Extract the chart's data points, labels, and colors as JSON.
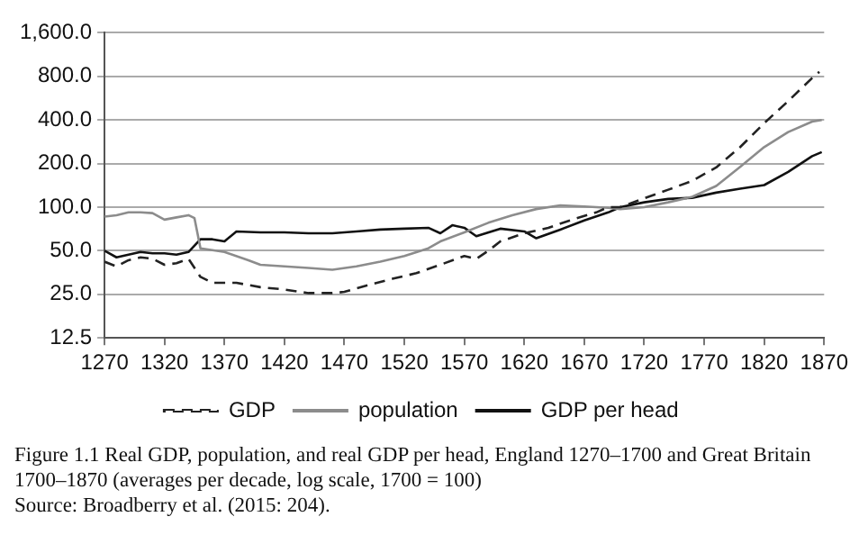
{
  "chart_data": {
    "type": "line",
    "log": "y",
    "grid": "y",
    "legend": "bottom",
    "marker": "none",
    "xlim": [
      1270,
      1870
    ],
    "xticks": [
      1270,
      1320,
      1370,
      1420,
      1470,
      1520,
      1570,
      1620,
      1670,
      1720,
      1770,
      1820,
      1870
    ],
    "ylim": [
      12.5,
      1600
    ],
    "yticks": [
      {
        "value": 12.5,
        "label": "12.5"
      },
      {
        "value": 25,
        "label": "25.0"
      },
      {
        "value": 50,
        "label": "50.0"
      },
      {
        "value": 100,
        "label": "100.0"
      },
      {
        "value": 200,
        "label": "200.0"
      },
      {
        "value": 400,
        "label": "400.0"
      },
      {
        "value": 800,
        "label": "800.0"
      },
      {
        "value": 1600,
        "label": "1,600.0"
      }
    ],
    "series": [
      {
        "name": "GDP",
        "color": "#222222",
        "line_style": "dashed",
        "x": [
          1270,
          1280,
          1290,
          1300,
          1310,
          1320,
          1330,
          1340,
          1350,
          1360,
          1380,
          1400,
          1420,
          1440,
          1460,
          1470,
          1490,
          1510,
          1530,
          1550,
          1570,
          1580,
          1590,
          1600,
          1620,
          1640,
          1660,
          1680,
          1690,
          1700,
          1720,
          1740,
          1760,
          1780,
          1800,
          1820,
          1840,
          1860,
          1866
        ],
        "values": [
          42,
          39,
          43,
          45,
          44,
          40,
          41,
          44,
          33,
          30,
          30,
          28,
          27,
          25.5,
          25.5,
          26,
          29,
          32,
          35,
          40,
          46,
          44,
          50,
          58,
          66,
          72,
          82,
          92,
          100,
          100,
          115,
          132,
          152,
          188,
          260,
          380,
          540,
          780,
          860
        ]
      },
      {
        "name": "population",
        "color": "#8c8c8c",
        "line_style": "solid",
        "x": [
          1270,
          1280,
          1290,
          1300,
          1310,
          1320,
          1330,
          1340,
          1345,
          1350,
          1370,
          1390,
          1400,
          1420,
          1440,
          1460,
          1480,
          1500,
          1520,
          1540,
          1550,
          1570,
          1590,
          1610,
          1630,
          1650,
          1670,
          1690,
          1700,
          1720,
          1740,
          1760,
          1780,
          1800,
          1820,
          1840,
          1860,
          1868
        ],
        "values": [
          86,
          88,
          92,
          92,
          91,
          82,
          85,
          88,
          84,
          52,
          49,
          43,
          40,
          39,
          38,
          37,
          39,
          42,
          46,
          52,
          58,
          67,
          78,
          88,
          97,
          103,
          101,
          99,
          97,
          100,
          108,
          118,
          140,
          190,
          260,
          330,
          390,
          400
        ]
      },
      {
        "name": "GDP per head",
        "color": "#111111",
        "line_style": "solid",
        "x": [
          1270,
          1280,
          1290,
          1300,
          1310,
          1320,
          1330,
          1340,
          1350,
          1360,
          1370,
          1380,
          1400,
          1420,
          1440,
          1460,
          1480,
          1500,
          1520,
          1540,
          1550,
          1560,
          1570,
          1580,
          1600,
          1620,
          1630,
          1650,
          1670,
          1690,
          1700,
          1720,
          1740,
          1760,
          1780,
          1800,
          1820,
          1840,
          1860,
          1868
        ],
        "values": [
          50,
          45,
          47,
          49,
          48,
          48,
          47,
          49,
          60,
          60,
          58,
          68,
          67,
          67,
          66,
          66,
          68,
          70,
          71,
          72,
          66,
          75,
          72,
          63,
          71,
          68,
          61,
          70,
          81,
          92,
          100,
          108,
          114,
          116,
          126,
          134,
          142,
          175,
          225,
          240
        ]
      }
    ],
    "annotations": [
      "Figure 1.1  Real GDP, population, and real GDP per head, England 1270–1700 and Great Britain 1700–1870 (averages per decade, log scale, 1700 = 100)",
      "Source: Broadberry et al. (2015: 204)."
    ]
  }
}
